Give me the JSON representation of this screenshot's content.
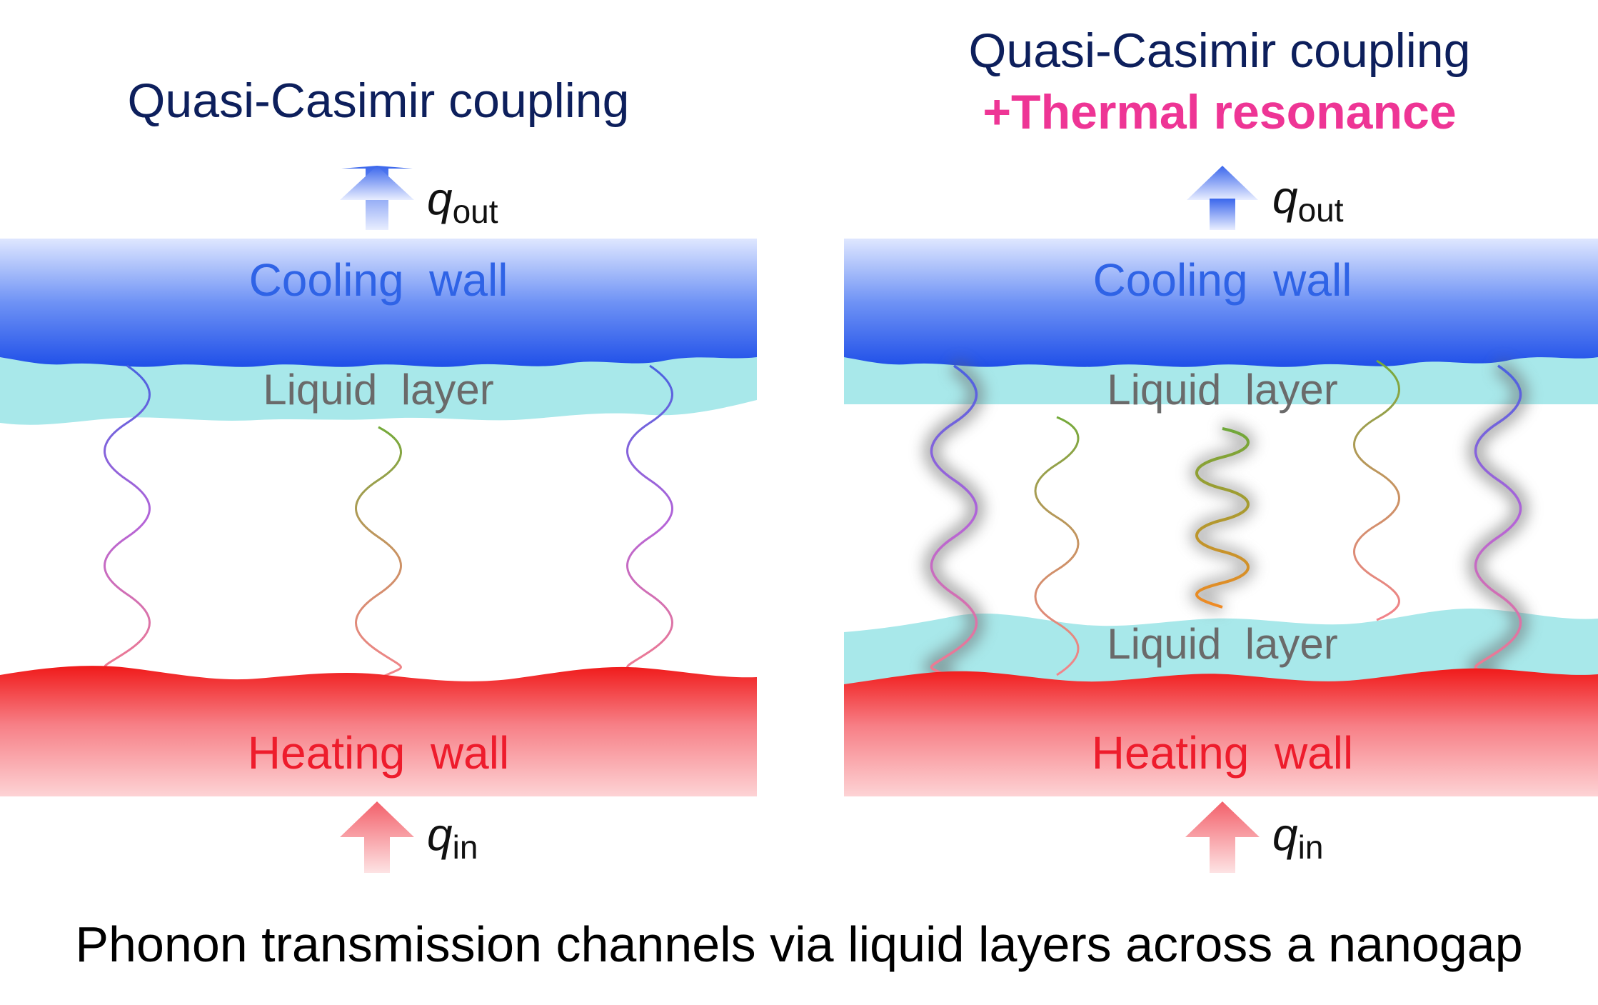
{
  "left_panel": {
    "title": "Quasi-Casimir coupling",
    "q_out_symbol": "q",
    "q_out_subscript": "out",
    "cooling_wall_label": "Cooling  wall",
    "liquid_layer_label": "Liquid  layer",
    "heating_wall_label": "Heating  wall",
    "q_in_symbol": "q",
    "q_in_subscript": "in"
  },
  "right_panel": {
    "title_line1": "Quasi-Casimir coupling",
    "title_line2": "+Thermal resonance",
    "q_out_symbol": "q",
    "q_out_subscript": "out",
    "cooling_wall_label": "Cooling  wall",
    "liquid_layer_top_label": "Liquid  layer",
    "liquid_layer_bottom_label": "Liquid  layer",
    "heating_wall_label": "Heating  wall",
    "q_in_symbol": "q",
    "q_in_subscript": "in"
  },
  "caption": "Phonon transmission channels via liquid layers across a nanogap",
  "colors": {
    "title_dark": "#0d1f5c",
    "title_pink": "#ee3595",
    "cooling_blue": "#2f63e6",
    "heating_red": "#ee1c2c",
    "liquid_cyan": "#a8e8ea"
  }
}
